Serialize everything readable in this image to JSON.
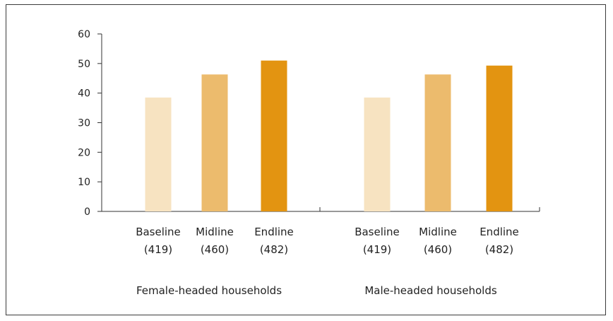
{
  "chart_data": {
    "type": "bar",
    "title": "",
    "xlabel": "",
    "ylabel": "",
    "ylim": [
      0,
      60
    ],
    "yticks": [
      0,
      10,
      20,
      30,
      40,
      50,
      60
    ],
    "grid": false,
    "groups": [
      {
        "label": "Female-headed households",
        "bars": [
          {
            "category": "Baseline",
            "n": "(419)",
            "value": 38.5,
            "color": "#f7e3c1"
          },
          {
            "category": "Midline",
            "n": "(460)",
            "value": 46.3,
            "color": "#ecbb6d"
          },
          {
            "category": "Endline",
            "n": "(482)",
            "value": 51.0,
            "color": "#e39411"
          }
        ]
      },
      {
        "label": "Male-headed households",
        "bars": [
          {
            "category": "Baseline",
            "n": "(419)",
            "value": 38.5,
            "color": "#f7e3c1"
          },
          {
            "category": "Midline",
            "n": "(460)",
            "value": 46.3,
            "color": "#ecbb6d"
          },
          {
            "category": "Endline",
            "n": "(482)",
            "value": 49.3,
            "color": "#e39411"
          }
        ]
      }
    ]
  }
}
